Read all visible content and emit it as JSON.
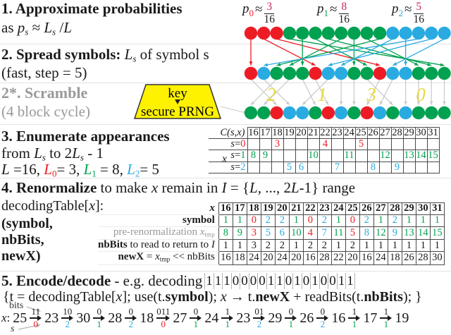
{
  "colors": {
    "red": "#ed1c24",
    "green": "#00a150",
    "blue": "#29abe2",
    "magenta": "#c7295f",
    "yellow": "#fff200",
    "yellow_text": "#e8d93e",
    "gray": "#98999b",
    "line_gray": "#c9c9c9",
    "ink": "#1a1a1a"
  },
  "sec1": {
    "line1": [
      {
        "t": "1. Approximate probabilities",
        "b": 1
      }
    ],
    "line2": [
      {
        "t": "as "
      },
      {
        "t": "p",
        "i": 1
      },
      {
        "t": "s",
        "i": 1,
        "sub": 1
      },
      {
        "t": " ≈ "
      },
      {
        "t": "L",
        "i": 1
      },
      {
        "t": "s",
        "i": 1,
        "sub": 1
      },
      {
        "t": " /"
      },
      {
        "t": "L",
        "i": 1
      }
    ]
  },
  "probs": [
    {
      "sym": "p",
      "sub": "0",
      "sub_color": "red",
      "approx": "≈",
      "num": "3",
      "den": "16"
    },
    {
      "sym": "p",
      "sub": "1",
      "sub_color": "green",
      "approx": "≈",
      "num": "8",
      "den": "16"
    },
    {
      "sym": "p",
      "sub": "2",
      "sub_color": "blue",
      "approx": "≈",
      "num": "5",
      "den": "16"
    }
  ],
  "sec2": {
    "line1": [
      {
        "t": "2. Spread symbols: ",
        "b": 1
      },
      {
        "t": "L",
        "i": 1
      },
      {
        "t": "s",
        "i": 1,
        "sub": 1
      },
      {
        "t": " of symbol s"
      }
    ],
    "line2": [
      {
        "t": "(fast, step = 5)"
      }
    ]
  },
  "scramble": {
    "line1": [
      {
        "t": "2*. Scramble",
        "b": 1,
        "g": 1
      }
    ],
    "line2": [
      {
        "t": "(4 block cycle)",
        "g": 1
      }
    ],
    "block_labels": [
      "2",
      "1",
      "3",
      "0"
    ]
  },
  "prng": {
    "top": "key",
    "bottom": "secure PRNG"
  },
  "diagram": {
    "row1": [
      0,
      0,
      0,
      1,
      1,
      1,
      1,
      1,
      1,
      1,
      1,
      2,
      2,
      2,
      2,
      2
    ],
    "row2": [
      0,
      2,
      1,
      1,
      1,
      0,
      2,
      2,
      1,
      1,
      0,
      2,
      2,
      1,
      1,
      1
    ],
    "row3": [
      1,
      1,
      0,
      2,
      2,
      1,
      0,
      2,
      1,
      0,
      2,
      1,
      2,
      1,
      1,
      1
    ],
    "spread_map": [
      0,
      5,
      10,
      15,
      4,
      9,
      14,
      3,
      8,
      13,
      2,
      7,
      12,
      1,
      6,
      11
    ],
    "scramble_map": [
      2,
      3,
      0,
      1,
      5,
      6,
      4,
      7,
      8,
      11,
      9,
      10,
      12,
      13,
      14,
      15
    ]
  },
  "sec3": {
    "line1": [
      {
        "t": "3. Enumerate appearances",
        "b": 1
      }
    ],
    "line2": [
      {
        "t": "from "
      },
      {
        "t": "L",
        "i": 1
      },
      {
        "t": "s",
        "i": 1,
        "sub": 1
      },
      {
        "t": " to 2"
      },
      {
        "t": "L",
        "i": 1
      },
      {
        "t": "s",
        "i": 1,
        "sub": 1
      },
      {
        "t": " - 1"
      }
    ],
    "line3": [
      {
        "t": "L",
        "i": 1
      },
      {
        "t": " =16, "
      },
      {
        "t": "L",
        "i": 1,
        "c": "red"
      },
      {
        "t": "0",
        "sub": 1,
        "c": "red"
      },
      {
        "t": "= 3, "
      },
      {
        "t": "L",
        "i": 1,
        "c": "green"
      },
      {
        "t": "1",
        "sub": 1,
        "c": "green"
      },
      {
        "t": " = 8, "
      },
      {
        "t": "L",
        "i": 1,
        "c": "blue"
      },
      {
        "t": "2",
        "sub": 1,
        "c": "blue"
      },
      {
        "t": "= 5"
      }
    ]
  },
  "ctable": {
    "corner": [
      {
        "t": "C(s,x)",
        "i": 1
      }
    ],
    "axis_label": "x",
    "cols": [
      "16",
      "17",
      "18",
      "19",
      "20",
      "21",
      "22",
      "23",
      "24",
      "25",
      "26",
      "27",
      "28",
      "29",
      "30",
      "31"
    ],
    "rows": [
      {
        "label": [
          {
            "t": "s",
            "i": 1
          },
          {
            "t": "="
          },
          {
            "t": "0",
            "c": "red"
          }
        ],
        "color": "red",
        "values": [
          "",
          "",
          "3",
          "",
          "",
          "",
          "4",
          "",
          "",
          "5",
          "",
          "",
          "",
          "",
          "",
          ""
        ]
      },
      {
        "label": [
          {
            "t": "s",
            "i": 1
          },
          {
            "t": "="
          },
          {
            "t": "1",
            "c": "green"
          }
        ],
        "color": "green",
        "values": [
          "8",
          "9",
          "",
          "",
          "",
          "10",
          "",
          "",
          "11",
          "",
          "",
          "12",
          "",
          "13",
          "14",
          "15"
        ]
      },
      {
        "label": [
          {
            "t": "s",
            "i": 1
          },
          {
            "t": "="
          },
          {
            "t": "2",
            "c": "blue"
          }
        ],
        "color": "blue",
        "values": [
          "",
          "",
          "",
          "5",
          "6",
          "",
          "",
          "7",
          "",
          "",
          "8",
          "",
          "9",
          "",
          "",
          ""
        ]
      }
    ]
  },
  "sec4": {
    "line1": [
      {
        "t": "4. Renormalize",
        "b": 1
      },
      {
        "t": " to make "
      },
      {
        "t": "x",
        "i": 1
      },
      {
        "t": " remain in "
      },
      {
        "t": "I",
        "i": 1
      },
      {
        "t": " = {"
      },
      {
        "t": "L",
        "i": 1
      },
      {
        "t": ", ..., 2"
      },
      {
        "t": "L",
        "i": 1
      },
      {
        "t": "-1} range"
      }
    ],
    "line2": [
      {
        "t": "decodingTable["
      },
      {
        "t": "x",
        "i": 1
      },
      {
        "t": "]:"
      }
    ],
    "line3": [
      {
        "t": "(symbol,",
        "b": 1
      }
    ],
    "line4": [
      {
        "t": "nbBits,",
        "b": 1
      }
    ],
    "line5": [
      {
        "t": "newX)",
        "b": 1
      }
    ]
  },
  "dtable": {
    "cols": [
      "16",
      "17",
      "18",
      "19",
      "20",
      "21",
      "22",
      "23",
      "24",
      "25",
      "26",
      "27",
      "28",
      "29",
      "30",
      "31"
    ],
    "rows": [
      {
        "label": [
          {
            "t": "x",
            "b": 1,
            "i": 1
          }
        ],
        "mode": "plain",
        "bold": 1,
        "values": [
          "16",
          "17",
          "18",
          "19",
          "20",
          "21",
          "22",
          "23",
          "24",
          "25",
          "26",
          "27",
          "28",
          "29",
          "30",
          "31"
        ]
      },
      {
        "label": [
          {
            "t": "symbol",
            "b": 1
          }
        ],
        "mode": "value",
        "values": [
          "1",
          "1",
          "0",
          "2",
          "2",
          "1",
          "0",
          "2",
          "1",
          "0",
          "2",
          "1",
          "2",
          "1",
          "1",
          "1"
        ]
      },
      {
        "label": [
          {
            "t": "pre-renormalization ",
            "g": 1
          },
          {
            "t": "x",
            "g": 1,
            "i": 1
          },
          {
            "t": "tmp",
            "g": 1,
            "sub": 1
          }
        ],
        "mode": "bysym",
        "values": [
          "8",
          "9",
          "3",
          "5",
          "6",
          "10",
          "4",
          "7",
          "11",
          "5",
          "8",
          "12",
          "9",
          "13",
          "14",
          "15"
        ]
      },
      {
        "label": [
          {
            "t": "nbBits",
            "b": 1
          },
          {
            "t": " to read to return to "
          },
          {
            "t": "I",
            "i": 1
          }
        ],
        "mode": "plain",
        "values": [
          "1",
          "1",
          "3",
          "2",
          "2",
          "1",
          "2",
          "2",
          "1",
          "2",
          "1",
          "1",
          "1",
          "1",
          "1",
          "1"
        ]
      },
      {
        "label": [
          {
            "t": "newX",
            "b": 1
          },
          {
            "t": " = "
          },
          {
            "t": "x",
            "i": 1
          },
          {
            "t": "tmp",
            "sub": 1
          },
          {
            "t": " << nbBits"
          }
        ],
        "mode": "plain",
        "values": [
          "16",
          "18",
          "24",
          "20",
          "24",
          "20",
          "16",
          "28",
          "22",
          "20",
          "16",
          "24",
          "18",
          "26",
          "28",
          "30"
        ]
      }
    ]
  },
  "sec5": {
    "line1": [
      {
        "t": "5. Encode/decode",
        "b": 1
      },
      {
        "t": " - e.g.  decoding "
      }
    ],
    "bits": "11100001101010011",
    "line2": [
      {
        "t": "{t = decodingTable["
      },
      {
        "t": "x",
        "i": 1
      },
      {
        "t": "]; use(t."
      },
      {
        "t": "symbol",
        "b": 1
      },
      {
        "t": "); "
      },
      {
        "t": "x",
        "i": 1
      },
      {
        "t": " → t."
      },
      {
        "t": "newX",
        "b": 1
      },
      {
        "t": " + readBits(t."
      },
      {
        "t": "nbBits",
        "b": 1
      },
      {
        "t": "); }"
      }
    ]
  },
  "trace": {
    "bits_label": "bits",
    "s_label": "s",
    "x_label": [
      {
        "t": "x",
        "i": 1
      },
      {
        "t": ":"
      }
    ],
    "xs": [
      "25",
      "23",
      "30",
      "28",
      "18",
      "27",
      "24",
      "23",
      "29",
      "26",
      "16",
      "17",
      "19"
    ],
    "steps": [
      {
        "bits": "11",
        "s": "0"
      },
      {
        "bits": "10",
        "s": "2"
      },
      {
        "bits": "0",
        "s": "1"
      },
      {
        "bits": "0",
        "s": "2"
      },
      {
        "bits": "011",
        "s": "0"
      },
      {
        "bits": "0",
        "s": "1"
      },
      {
        "bits": "1",
        "s": "1"
      },
      {
        "bits": "01",
        "s": "2"
      },
      {
        "bits": "0",
        "s": "1"
      },
      {
        "bits": "0",
        "s": "2"
      },
      {
        "bits": "1",
        "s": "1"
      },
      {
        "bits": "1",
        "s": "1"
      }
    ]
  }
}
